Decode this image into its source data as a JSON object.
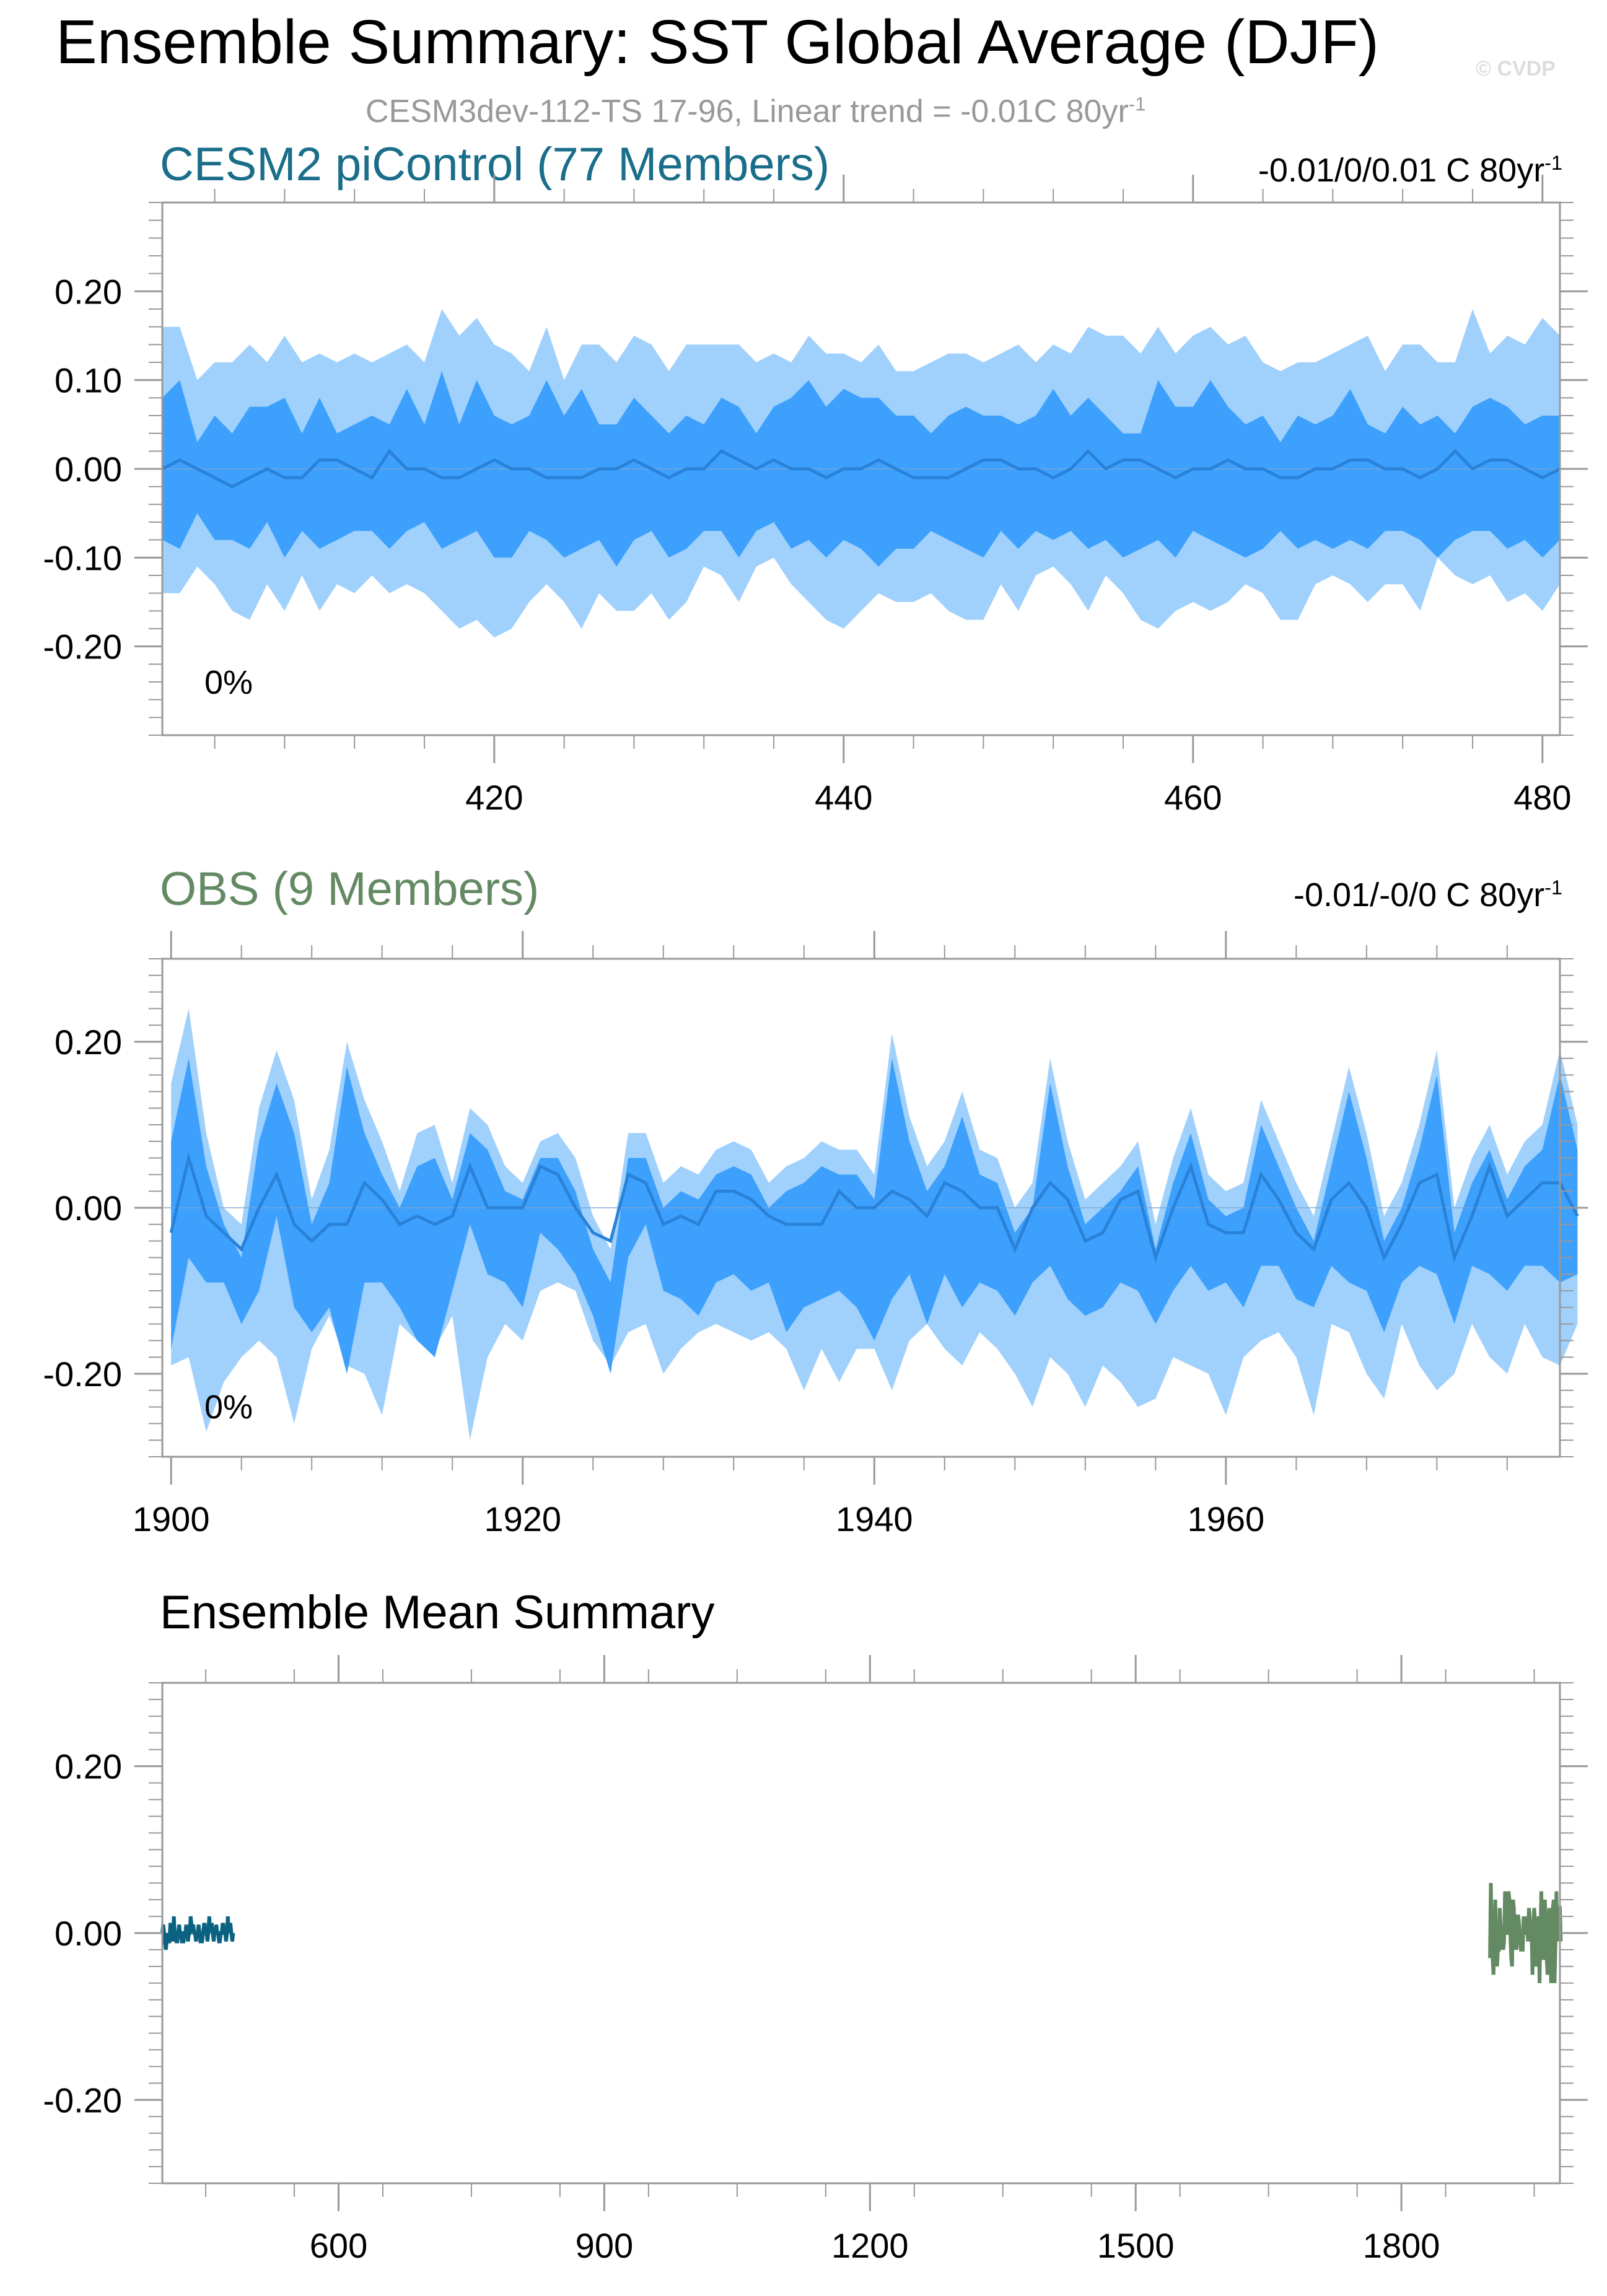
{
  "title": "Ensemble Summary: SST Global Average (DJF)",
  "watermark": "© CVDP",
  "subtitle": {
    "text": "CESM3dev-112-TS 17-96, Linear trend = -0.01C 80yr",
    "sup": "-1"
  },
  "colors": {
    "outer_band": "#a0d0fc",
    "inner_band": "#3ca0fc",
    "mean_line": "#2a82d8",
    "cesm_line": "#0b6280",
    "obs_line": "#648a64",
    "frame": "#999999",
    "subtitle": "#999999"
  },
  "chart_data": [
    {
      "type": "area",
      "title": "CESM2 piControl (77 Members)",
      "title_color": "#1a6e8a",
      "trend": {
        "text": "-0.01/0/0.01 C 80yr",
        "sup": "-1"
      },
      "pct_label": "0%",
      "xlim": [
        401,
        481
      ],
      "ylim": [
        -0.3,
        0.3
      ],
      "xticks": [
        420,
        440,
        460,
        480
      ],
      "yticks": [
        0.2,
        0.1,
        0.0,
        -0.1,
        -0.2
      ],
      "ytick_labels": [
        "0.20",
        "0.10",
        "0.00",
        "-0.10",
        "-0.20"
      ],
      "x_start": 401,
      "mean": [
        0.0,
        0.01,
        0.0,
        -0.01,
        -0.02,
        -0.01,
        0.0,
        -0.01,
        -0.01,
        0.01,
        0.01,
        0.0,
        -0.01,
        0.02,
        0.0,
        0.0,
        -0.01,
        -0.01,
        0.0,
        0.01,
        0.0,
        0.0,
        -0.01,
        -0.01,
        -0.01,
        0.0,
        0.0,
        0.01,
        0.0,
        -0.01,
        0.0,
        0.0,
        0.02,
        0.01,
        0.0,
        0.01,
        0.0,
        0.0,
        -0.01,
        0.0,
        0.0,
        0.01,
        0.0,
        -0.01,
        -0.01,
        -0.01,
        0.0,
        0.01,
        0.01,
        0.0,
        0.0,
        -0.01,
        0.0,
        0.02,
        0.0,
        0.01,
        0.01,
        0.0,
        -0.01,
        0.0,
        0.0,
        0.01,
        0.0,
        0.0,
        -0.01,
        -0.01,
        0.0,
        0.0,
        0.01,
        0.01,
        0.0,
        0.0,
        -0.01,
        0.0,
        0.02,
        0.0,
        0.01,
        0.01,
        0.0,
        -0.01,
        0.0
      ],
      "p90": [
        0.08,
        0.1,
        0.03,
        0.06,
        0.04,
        0.07,
        0.07,
        0.08,
        0.04,
        0.08,
        0.04,
        0.05,
        0.06,
        0.05,
        0.09,
        0.05,
        0.11,
        0.05,
        0.1,
        0.06,
        0.05,
        0.06,
        0.1,
        0.06,
        0.09,
        0.05,
        0.05,
        0.08,
        0.06,
        0.04,
        0.06,
        0.05,
        0.08,
        0.07,
        0.04,
        0.07,
        0.08,
        0.1,
        0.07,
        0.09,
        0.08,
        0.08,
        0.06,
        0.06,
        0.04,
        0.06,
        0.07,
        0.06,
        0.06,
        0.05,
        0.06,
        0.09,
        0.06,
        0.08,
        0.06,
        0.04,
        0.04,
        0.1,
        0.07,
        0.07,
        0.1,
        0.07,
        0.05,
        0.06,
        0.03,
        0.06,
        0.05,
        0.06,
        0.09,
        0.05,
        0.04,
        0.07,
        0.05,
        0.06,
        0.04,
        0.07,
        0.08,
        0.07,
        0.05,
        0.06,
        0.06
      ],
      "p10": [
        -0.08,
        -0.09,
        -0.05,
        -0.08,
        -0.08,
        -0.09,
        -0.06,
        -0.1,
        -0.07,
        -0.09,
        -0.08,
        -0.07,
        -0.07,
        -0.09,
        -0.07,
        -0.06,
        -0.09,
        -0.08,
        -0.07,
        -0.1,
        -0.1,
        -0.07,
        -0.08,
        -0.1,
        -0.09,
        -0.08,
        -0.11,
        -0.08,
        -0.07,
        -0.1,
        -0.09,
        -0.07,
        -0.07,
        -0.1,
        -0.07,
        -0.06,
        -0.09,
        -0.08,
        -0.1,
        -0.08,
        -0.09,
        -0.11,
        -0.09,
        -0.09,
        -0.07,
        -0.08,
        -0.09,
        -0.1,
        -0.07,
        -0.09,
        -0.07,
        -0.08,
        -0.07,
        -0.09,
        -0.08,
        -0.1,
        -0.09,
        -0.08,
        -0.1,
        -0.07,
        -0.08,
        -0.09,
        -0.1,
        -0.09,
        -0.07,
        -0.09,
        -0.08,
        -0.09,
        -0.08,
        -0.09,
        -0.07,
        -0.07,
        -0.08,
        -0.1,
        -0.08,
        -0.07,
        -0.07,
        -0.09,
        -0.08,
        -0.1,
        -0.08
      ],
      "p97": [
        0.16,
        0.16,
        0.1,
        0.12,
        0.12,
        0.14,
        0.12,
        0.15,
        0.12,
        0.13,
        0.12,
        0.13,
        0.12,
        0.13,
        0.14,
        0.12,
        0.18,
        0.15,
        0.17,
        0.14,
        0.13,
        0.11,
        0.16,
        0.1,
        0.14,
        0.14,
        0.12,
        0.15,
        0.14,
        0.11,
        0.14,
        0.14,
        0.14,
        0.14,
        0.12,
        0.13,
        0.12,
        0.15,
        0.13,
        0.13,
        0.12,
        0.14,
        0.11,
        0.11,
        0.12,
        0.13,
        0.13,
        0.12,
        0.13,
        0.14,
        0.12,
        0.14,
        0.13,
        0.16,
        0.15,
        0.15,
        0.13,
        0.16,
        0.13,
        0.15,
        0.16,
        0.14,
        0.15,
        0.12,
        0.11,
        0.12,
        0.12,
        0.13,
        0.14,
        0.15,
        0.11,
        0.14,
        0.14,
        0.12,
        0.12,
        0.18,
        0.13,
        0.15,
        0.14,
        0.17,
        0.15
      ],
      "p3": [
        -0.14,
        -0.14,
        -0.11,
        -0.13,
        -0.16,
        -0.17,
        -0.13,
        -0.16,
        -0.12,
        -0.16,
        -0.13,
        -0.14,
        -0.12,
        -0.14,
        -0.13,
        -0.14,
        -0.16,
        -0.18,
        -0.17,
        -0.19,
        -0.18,
        -0.15,
        -0.13,
        -0.15,
        -0.18,
        -0.14,
        -0.16,
        -0.16,
        -0.14,
        -0.17,
        -0.15,
        -0.11,
        -0.12,
        -0.15,
        -0.11,
        -0.1,
        -0.13,
        -0.15,
        -0.17,
        -0.18,
        -0.16,
        -0.14,
        -0.15,
        -0.15,
        -0.14,
        -0.16,
        -0.17,
        -0.17,
        -0.13,
        -0.16,
        -0.12,
        -0.11,
        -0.13,
        -0.16,
        -0.12,
        -0.14,
        -0.17,
        -0.18,
        -0.16,
        -0.15,
        -0.16,
        -0.15,
        -0.13,
        -0.14,
        -0.17,
        -0.17,
        -0.13,
        -0.12,
        -0.13,
        -0.15,
        -0.13,
        -0.13,
        -0.16,
        -0.1,
        -0.12,
        -0.13,
        -0.12,
        -0.15,
        -0.14,
        -0.16,
        -0.13
      ]
    },
    {
      "type": "area",
      "title": "OBS (9 Members)",
      "title_color": "#648a64",
      "trend": {
        "text": "-0.01/-0/0 C 80yr",
        "sup": "-1"
      },
      "pct_label": "0%",
      "xlim": [
        1899.5,
        1979
      ],
      "ylim": [
        -0.3,
        0.3
      ],
      "xticks": [
        1900,
        1920,
        1940,
        1960
      ],
      "yticks": [
        0.2,
        0.0,
        -0.2
      ],
      "ytick_labels": [
        "0.20",
        "0.00",
        "-0.20"
      ],
      "x_start": 1900,
      "mean": [
        -0.03,
        0.06,
        -0.01,
        -0.03,
        -0.05,
        0.0,
        0.04,
        -0.02,
        -0.04,
        -0.02,
        -0.02,
        0.03,
        0.01,
        -0.02,
        -0.01,
        -0.02,
        -0.01,
        0.05,
        0.0,
        0.0,
        0.0,
        0.05,
        0.04,
        0.0,
        -0.03,
        -0.04,
        0.04,
        0.03,
        -0.02,
        -0.01,
        -0.02,
        0.02,
        0.02,
        0.01,
        -0.01,
        -0.02,
        -0.02,
        -0.02,
        0.02,
        0.0,
        0.0,
        0.02,
        0.01,
        -0.01,
        0.03,
        0.02,
        0.0,
        0.0,
        -0.05,
        0.0,
        0.03,
        0.01,
        -0.04,
        -0.03,
        0.01,
        0.02,
        -0.06,
        0.0,
        0.05,
        -0.02,
        -0.03,
        -0.03,
        0.04,
        0.01,
        -0.03,
        -0.05,
        0.01,
        0.03,
        0.0,
        -0.06,
        -0.02,
        0.03,
        0.04,
        -0.06,
        -0.01,
        0.05,
        -0.01,
        0.01,
        0.03,
        0.03,
        -0.01
      ],
      "p90": [
        0.08,
        0.18,
        0.05,
        -0.02,
        -0.06,
        0.08,
        0.15,
        0.09,
        -0.02,
        0.03,
        0.17,
        0.09,
        0.04,
        0.0,
        0.05,
        0.06,
        0.01,
        0.09,
        0.07,
        0.02,
        0.01,
        0.06,
        0.06,
        0.02,
        -0.05,
        -0.09,
        0.06,
        0.06,
        0.0,
        0.02,
        0.01,
        0.04,
        0.05,
        0.04,
        0.0,
        0.02,
        0.03,
        0.05,
        0.04,
        0.04,
        0.01,
        0.18,
        0.08,
        0.02,
        0.05,
        0.11,
        0.04,
        0.03,
        -0.03,
        0.0,
        0.15,
        0.05,
        -0.02,
        0.0,
        0.02,
        0.05,
        -0.05,
        0.03,
        0.09,
        0.01,
        -0.01,
        0.0,
        0.1,
        0.05,
        0.0,
        -0.04,
        0.05,
        0.14,
        0.06,
        -0.04,
        0.0,
        0.07,
        0.16,
        -0.03,
        0.03,
        0.07,
        0.01,
        0.05,
        0.07,
        0.16,
        0.07
      ],
      "p10": [
        -0.17,
        -0.06,
        -0.09,
        -0.09,
        -0.14,
        -0.1,
        -0.01,
        -0.12,
        -0.15,
        -0.12,
        -0.2,
        -0.09,
        -0.09,
        -0.12,
        -0.16,
        -0.18,
        -0.1,
        -0.02,
        -0.08,
        -0.09,
        -0.12,
        -0.03,
        -0.05,
        -0.08,
        -0.13,
        -0.2,
        -0.06,
        -0.02,
        -0.1,
        -0.11,
        -0.13,
        -0.09,
        -0.08,
        -0.1,
        -0.09,
        -0.15,
        -0.12,
        -0.11,
        -0.1,
        -0.12,
        -0.16,
        -0.11,
        -0.08,
        -0.14,
        -0.08,
        -0.12,
        -0.09,
        -0.1,
        -0.13,
        -0.09,
        -0.07,
        -0.11,
        -0.13,
        -0.12,
        -0.09,
        -0.1,
        -0.14,
        -0.1,
        -0.07,
        -0.1,
        -0.09,
        -0.12,
        -0.07,
        -0.07,
        -0.11,
        -0.12,
        -0.07,
        -0.09,
        -0.1,
        -0.15,
        -0.09,
        -0.07,
        -0.08,
        -0.14,
        -0.07,
        -0.08,
        -0.1,
        -0.07,
        -0.07,
        -0.09,
        -0.08
      ],
      "p97": [
        0.15,
        0.24,
        0.09,
        0.0,
        -0.02,
        0.12,
        0.19,
        0.13,
        0.01,
        0.07,
        0.2,
        0.13,
        0.08,
        0.02,
        0.09,
        0.1,
        0.03,
        0.12,
        0.1,
        0.05,
        0.03,
        0.08,
        0.09,
        0.06,
        -0.01,
        -0.05,
        0.09,
        0.09,
        0.03,
        0.05,
        0.04,
        0.07,
        0.08,
        0.07,
        0.03,
        0.05,
        0.06,
        0.08,
        0.07,
        0.07,
        0.04,
        0.21,
        0.11,
        0.05,
        0.08,
        0.14,
        0.07,
        0.06,
        0.0,
        0.03,
        0.18,
        0.08,
        0.01,
        0.03,
        0.05,
        0.08,
        -0.02,
        0.06,
        0.12,
        0.04,
        0.02,
        0.03,
        0.13,
        0.08,
        0.03,
        -0.01,
        0.08,
        0.17,
        0.09,
        -0.01,
        0.03,
        0.1,
        0.19,
        0.0,
        0.06,
        0.1,
        0.04,
        0.08,
        0.1,
        0.19,
        0.1
      ],
      "p3": [
        -0.19,
        -0.18,
        -0.27,
        -0.21,
        -0.18,
        -0.16,
        -0.18,
        -0.26,
        -0.17,
        -0.13,
        -0.19,
        -0.2,
        -0.25,
        -0.14,
        -0.16,
        -0.17,
        -0.13,
        -0.28,
        -0.18,
        -0.14,
        -0.16,
        -0.1,
        -0.09,
        -0.1,
        -0.16,
        -0.19,
        -0.15,
        -0.14,
        -0.2,
        -0.17,
        -0.15,
        -0.14,
        -0.15,
        -0.16,
        -0.15,
        -0.17,
        -0.22,
        -0.17,
        -0.21,
        -0.17,
        -0.17,
        -0.22,
        -0.16,
        -0.14,
        -0.17,
        -0.19,
        -0.15,
        -0.17,
        -0.2,
        -0.24,
        -0.18,
        -0.2,
        -0.24,
        -0.19,
        -0.21,
        -0.24,
        -0.23,
        -0.18,
        -0.19,
        -0.2,
        -0.25,
        -0.18,
        -0.16,
        -0.15,
        -0.18,
        -0.25,
        -0.14,
        -0.15,
        -0.2,
        -0.23,
        -0.14,
        -0.19,
        -0.22,
        -0.2,
        -0.14,
        -0.18,
        -0.2,
        -0.14,
        -0.18,
        -0.19,
        -0.14
      ]
    },
    {
      "type": "line",
      "title": "Ensemble Mean Summary",
      "title_color": "#000000",
      "xlim": [
        401,
        1979
      ],
      "ylim": [
        -0.3,
        0.3
      ],
      "xticks": [
        600,
        900,
        1200,
        1500,
        1800
      ],
      "yticks": [
        0.2,
        0.0,
        -0.2
      ],
      "ytick_labels": [
        "0.20",
        "0.00",
        "-0.20"
      ],
      "series": [
        {
          "source": "cesm",
          "x_start": 401,
          "color": "#0b6280"
        },
        {
          "source": "obs",
          "x_start": 1900,
          "color": "#648a64"
        }
      ]
    }
  ]
}
